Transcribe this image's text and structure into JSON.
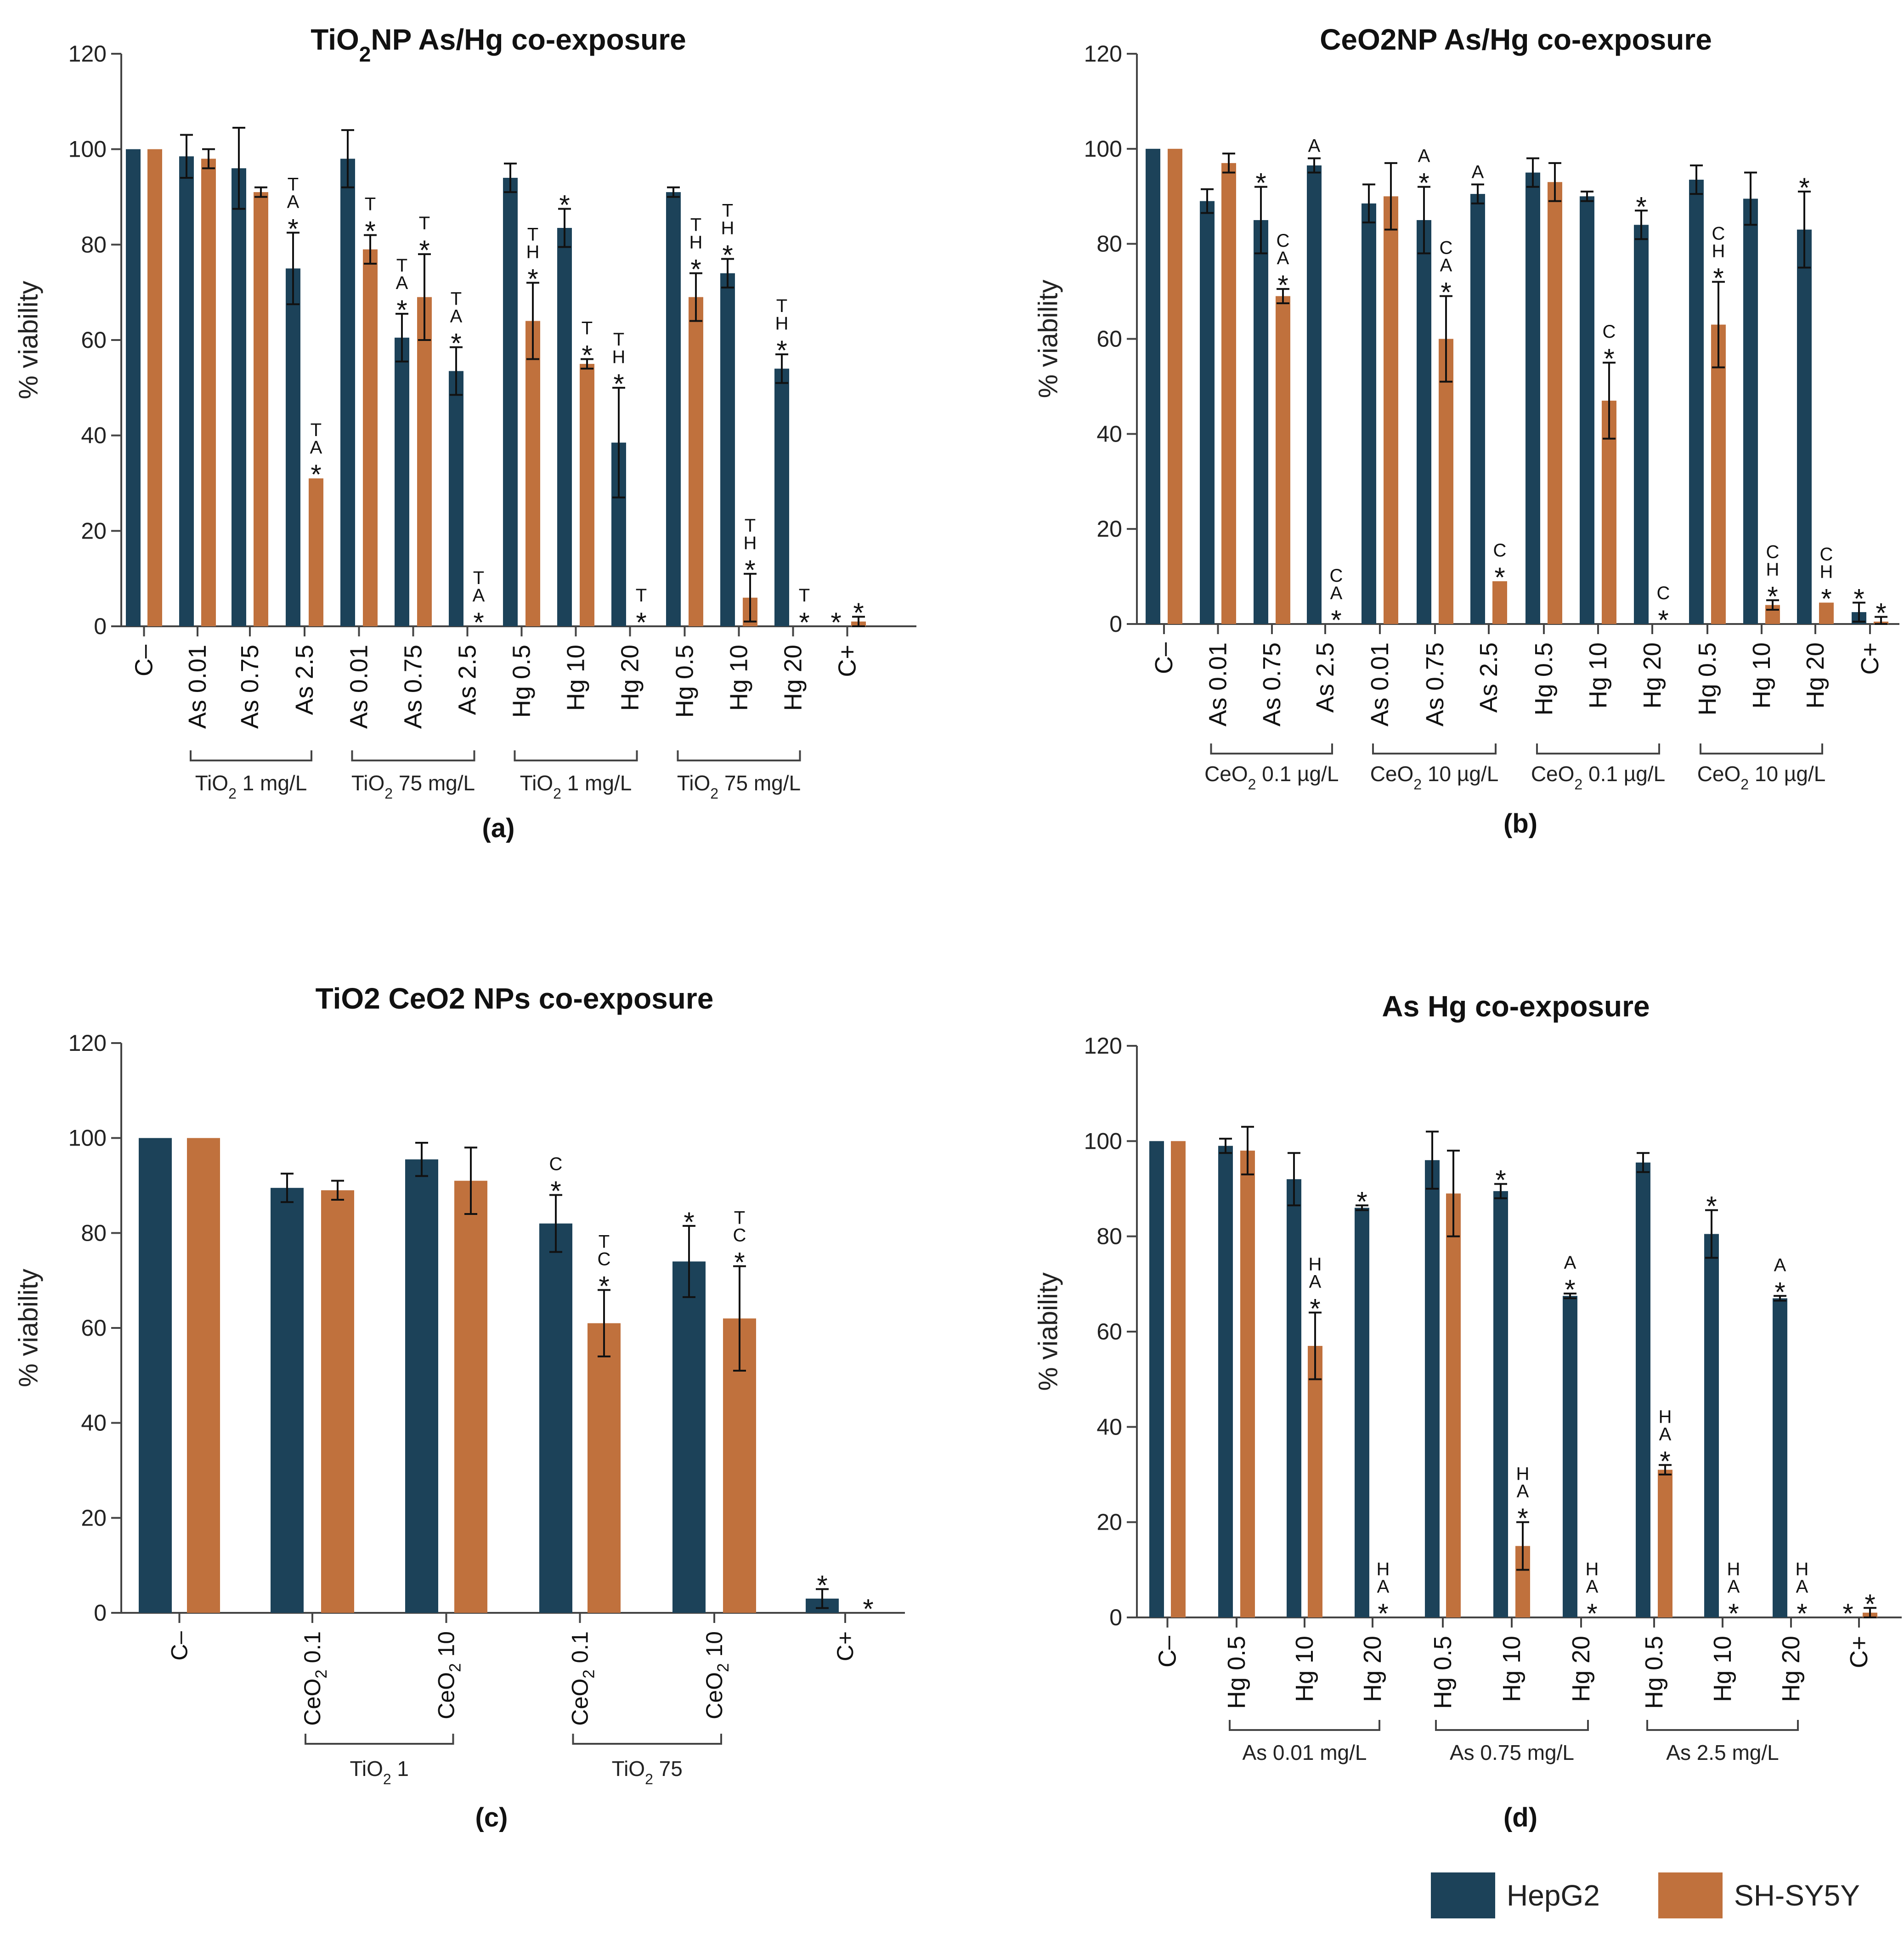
{
  "legend": {
    "hepg2": "HepG2",
    "shsy5y": "SH-SY5Y"
  },
  "colors": {
    "hepg2": "#1c4259",
    "shsy5y": "#c0713d",
    "axis": "#444444",
    "text": "#111111"
  },
  "chart_data": [
    {
      "id": "a",
      "type": "bar",
      "title": "TiO2NP As/Hg co-exposure",
      "title_parts": {
        "pre": "TiO",
        "sub": "2",
        "post": "NP As/Hg co-exposure"
      },
      "panel_label": "(a)",
      "ylabel": "% viability",
      "ylim": [
        0,
        120
      ],
      "yticks": [
        0,
        20,
        40,
        60,
        80,
        100,
        120
      ],
      "series_names": [
        "HepG2",
        "SH-SY5Y"
      ],
      "categories": [
        "C–",
        "As 0.01",
        "As 0.75",
        "As 2.5",
        "As 0.01",
        "As 0.75",
        "As 2.5",
        "Hg 0.5",
        "Hg 10",
        "Hg 20",
        "Hg 0.5",
        "Hg 10",
        "Hg 20",
        "C+"
      ],
      "values": [
        [
          100,
          100
        ],
        [
          98.5,
          98
        ],
        [
          96,
          91
        ],
        [
          75,
          31
        ],
        [
          98,
          79
        ],
        [
          60.5,
          69
        ],
        [
          53.5,
          0
        ],
        [
          94,
          64
        ],
        [
          83.5,
          55
        ],
        [
          38.5,
          0
        ],
        [
          91,
          69
        ],
        [
          74,
          6
        ],
        [
          54,
          0
        ],
        [
          0,
          1
        ]
      ],
      "errors": [
        [
          0,
          0
        ],
        [
          4.5,
          2
        ],
        [
          8.5,
          1
        ],
        [
          7.5,
          0
        ],
        [
          6,
          3
        ],
        [
          5,
          9
        ],
        [
          5,
          0
        ],
        [
          3,
          8
        ],
        [
          4,
          1
        ],
        [
          11.5,
          0
        ],
        [
          1,
          5
        ],
        [
          3,
          5
        ],
        [
          3,
          0
        ],
        [
          0,
          1
        ]
      ],
      "annotations": [
        [
          "",
          ""
        ],
        [
          "",
          ""
        ],
        [
          "",
          ""
        ],
        [
          "TA*",
          "TA*"
        ],
        [
          "",
          "T*"
        ],
        [
          "TA*",
          "T*"
        ],
        [
          "TA*",
          "TA*"
        ],
        [
          "",
          "TH*"
        ],
        [
          "*",
          "T*"
        ],
        [
          "TH*",
          "T*"
        ],
        [
          "",
          "TH*"
        ],
        [
          "TH*",
          "TH*"
        ],
        [
          "TH*",
          "T*"
        ],
        [
          "*",
          "*"
        ]
      ],
      "groups": [
        {
          "from": 1,
          "to": 3,
          "parts": {
            "pre": "TiO",
            "sub": "2",
            "post": " 1 mg/L"
          }
        },
        {
          "from": 4,
          "to": 6,
          "parts": {
            "pre": "TiO",
            "sub": "2",
            "post": " 75 mg/L"
          }
        },
        {
          "from": 7,
          "to": 9,
          "parts": {
            "pre": "TiO",
            "sub": "2",
            "post": " 1 mg/L"
          }
        },
        {
          "from": 10,
          "to": 12,
          "parts": {
            "pre": "TiO",
            "sub": "2",
            "post": " 75 mg/L"
          }
        }
      ]
    },
    {
      "id": "b",
      "type": "bar",
      "title": "CeO2NP As/Hg co-exposure",
      "title_parts": {
        "pre": "CeO2NP As/Hg co-exposure",
        "sub": "",
        "post": ""
      },
      "panel_label": "(b)",
      "ylabel": "% viability",
      "ylim": [
        0,
        120
      ],
      "yticks": [
        0,
        20,
        40,
        60,
        80,
        100,
        120
      ],
      "series_names": [
        "HepG2",
        "SH-SY5Y"
      ],
      "categories": [
        "C–",
        "As 0.01",
        "As 0.75",
        "As 2.5",
        "As 0.01",
        "As 0.75",
        "As 2.5",
        "Hg 0.5",
        "Hg 10",
        "Hg 20",
        "Hg 0.5",
        "Hg 10",
        "Hg 20",
        "C+"
      ],
      "values": [
        [
          100,
          100
        ],
        [
          89,
          97
        ],
        [
          85,
          69
        ],
        [
          96.5,
          0
        ],
        [
          88.5,
          90
        ],
        [
          85,
          60
        ],
        [
          90.5,
          9
        ],
        [
          95,
          93
        ],
        [
          90,
          47
        ],
        [
          84,
          0
        ],
        [
          93.5,
          63
        ],
        [
          89.5,
          4
        ],
        [
          83,
          4.5
        ],
        [
          2.5,
          0.5
        ]
      ],
      "errors": [
        [
          0,
          0
        ],
        [
          2.5,
          2
        ],
        [
          7,
          1.5
        ],
        [
          1.5,
          0
        ],
        [
          4,
          7
        ],
        [
          7,
          9
        ],
        [
          2,
          0
        ],
        [
          3,
          4
        ],
        [
          1,
          8
        ],
        [
          3,
          0
        ],
        [
          3,
          9
        ],
        [
          5.5,
          1
        ],
        [
          8,
          0
        ],
        [
          2,
          1
        ]
      ],
      "annotations": [
        [
          "",
          ""
        ],
        [
          "",
          ""
        ],
        [
          "*",
          "CA*"
        ],
        [
          "A",
          "CA*"
        ],
        [
          "",
          ""
        ],
        [
          "A*",
          "CA*"
        ],
        [
          "A",
          "C*"
        ],
        [
          "",
          ""
        ],
        [
          "",
          "C*"
        ],
        [
          "*",
          "C*"
        ],
        [
          "",
          "CH*"
        ],
        [
          "",
          "CH*"
        ],
        [
          "*",
          "CH*"
        ],
        [
          "*",
          "*"
        ]
      ],
      "groups": [
        {
          "from": 1,
          "to": 3,
          "parts": {
            "pre": "CeO",
            "sub": "2",
            "post": " 0.1 µg/L"
          }
        },
        {
          "from": 4,
          "to": 6,
          "parts": {
            "pre": "CeO",
            "sub": "2",
            "post": " 10 µg/L"
          }
        },
        {
          "from": 7,
          "to": 9,
          "parts": {
            "pre": "CeO",
            "sub": "2",
            "post": " 0.1 µg/L"
          }
        },
        {
          "from": 10,
          "to": 12,
          "parts": {
            "pre": "CeO",
            "sub": "2",
            "post": " 10 µg/L"
          }
        }
      ]
    },
    {
      "id": "c",
      "type": "bar",
      "title": "TiO2 CeO2 NPs co-exposure",
      "title_parts": {
        "pre": "TiO2 CeO2 NPs co-exposure",
        "sub": "",
        "post": ""
      },
      "panel_label": "(c)",
      "ylabel": "% viability",
      "ylim": [
        0,
        120
      ],
      "yticks": [
        0,
        20,
        40,
        60,
        80,
        100,
        120
      ],
      "series_names": [
        "HepG2",
        "SH-SY5Y"
      ],
      "categories": [
        "C–",
        "CeO2 0.1",
        "CeO2 10",
        "CeO2 0.1",
        "CeO2 10",
        "C+"
      ],
      "values": [
        [
          100,
          100
        ],
        [
          89.5,
          89
        ],
        [
          95.5,
          91
        ],
        [
          82,
          61
        ],
        [
          74,
          62
        ],
        [
          3,
          0
        ]
      ],
      "errors": [
        [
          0,
          0
        ],
        [
          3,
          2
        ],
        [
          3.5,
          7
        ],
        [
          6,
          7
        ],
        [
          7.5,
          11
        ],
        [
          2,
          0
        ]
      ],
      "annotations": [
        [
          "",
          ""
        ],
        [
          "",
          ""
        ],
        [
          "",
          ""
        ],
        [
          "C*",
          "TC*"
        ],
        [
          "*",
          "TC*"
        ],
        [
          "*",
          "*"
        ]
      ],
      "groups": [
        {
          "from": 1,
          "to": 2,
          "parts": {
            "pre": "TiO",
            "sub": "2",
            "post": " 1"
          }
        },
        {
          "from": 3,
          "to": 4,
          "parts": {
            "pre": "TiO",
            "sub": "2",
            "post": " 75"
          }
        }
      ]
    },
    {
      "id": "d",
      "type": "bar",
      "title": "As Hg co-exposure",
      "title_parts": {
        "pre": "As Hg co-exposure",
        "sub": "",
        "post": ""
      },
      "panel_label": "(d)",
      "ylabel": "% viability",
      "ylim": [
        0,
        120
      ],
      "yticks": [
        0,
        20,
        40,
        60,
        80,
        100,
        120
      ],
      "series_names": [
        "HepG2",
        "SH-SY5Y"
      ],
      "categories": [
        "C–",
        "Hg 0.5",
        "Hg 10",
        "Hg 20",
        "Hg 0.5",
        "Hg 10",
        "Hg 20",
        "Hg 0.5",
        "Hg 10",
        "Hg 20",
        "C+"
      ],
      "values": [
        [
          100,
          100
        ],
        [
          99,
          98
        ],
        [
          92,
          57
        ],
        [
          86,
          0
        ],
        [
          96,
          89
        ],
        [
          89.5,
          15
        ],
        [
          67.5,
          0
        ],
        [
          95.5,
          31
        ],
        [
          80.5,
          0
        ],
        [
          67,
          0
        ],
        [
          0,
          1
        ]
      ],
      "errors": [
        [
          0,
          0
        ],
        [
          1.5,
          5
        ],
        [
          5.5,
          7
        ],
        [
          0.5,
          0
        ],
        [
          6,
          9
        ],
        [
          1.5,
          5
        ],
        [
          0.5,
          0
        ],
        [
          2,
          1
        ],
        [
          5,
          0
        ],
        [
          0.5,
          0
        ],
        [
          0,
          1
        ]
      ],
      "annotations": [
        [
          "",
          ""
        ],
        [
          "",
          ""
        ],
        [
          "",
          "HA*"
        ],
        [
          "*",
          "HA*"
        ],
        [
          "",
          ""
        ],
        [
          "*",
          "HA*"
        ],
        [
          "A*",
          "HA*"
        ],
        [
          "",
          "HA*"
        ],
        [
          "*",
          "HA*"
        ],
        [
          "A*",
          "HA*"
        ],
        [
          "*",
          "*"
        ]
      ],
      "groups": [
        {
          "from": 1,
          "to": 3,
          "parts": {
            "pre": "As 0.01 mg/L",
            "sub": "",
            "post": ""
          }
        },
        {
          "from": 4,
          "to": 6,
          "parts": {
            "pre": "As 0.75 mg/L",
            "sub": "",
            "post": ""
          }
        },
        {
          "from": 7,
          "to": 9,
          "parts": {
            "pre": "As 2.5 mg/L",
            "sub": "",
            "post": ""
          }
        }
      ]
    }
  ]
}
